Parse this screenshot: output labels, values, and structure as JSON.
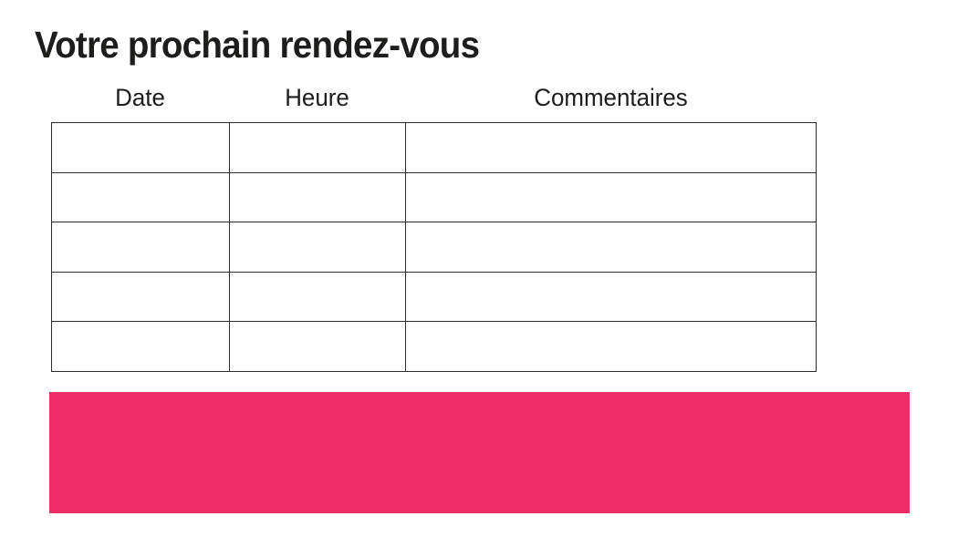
{
  "page": {
    "title": "Votre prochain rendez-vous"
  },
  "table": {
    "columns": [
      {
        "label": "Date"
      },
      {
        "label": "Heure"
      },
      {
        "label": "Commentaires"
      }
    ],
    "rows": [
      [
        "",
        "",
        ""
      ],
      [
        "",
        "",
        ""
      ],
      [
        "",
        "",
        ""
      ],
      [
        "",
        "",
        ""
      ],
      [
        "",
        "",
        ""
      ]
    ]
  },
  "banner": {
    "text": ""
  },
  "colors": {
    "text": "#1d1d1b",
    "table_border": "#2b2b2b",
    "accent_pink": "#ed2e67",
    "background": "#ffffff"
  }
}
